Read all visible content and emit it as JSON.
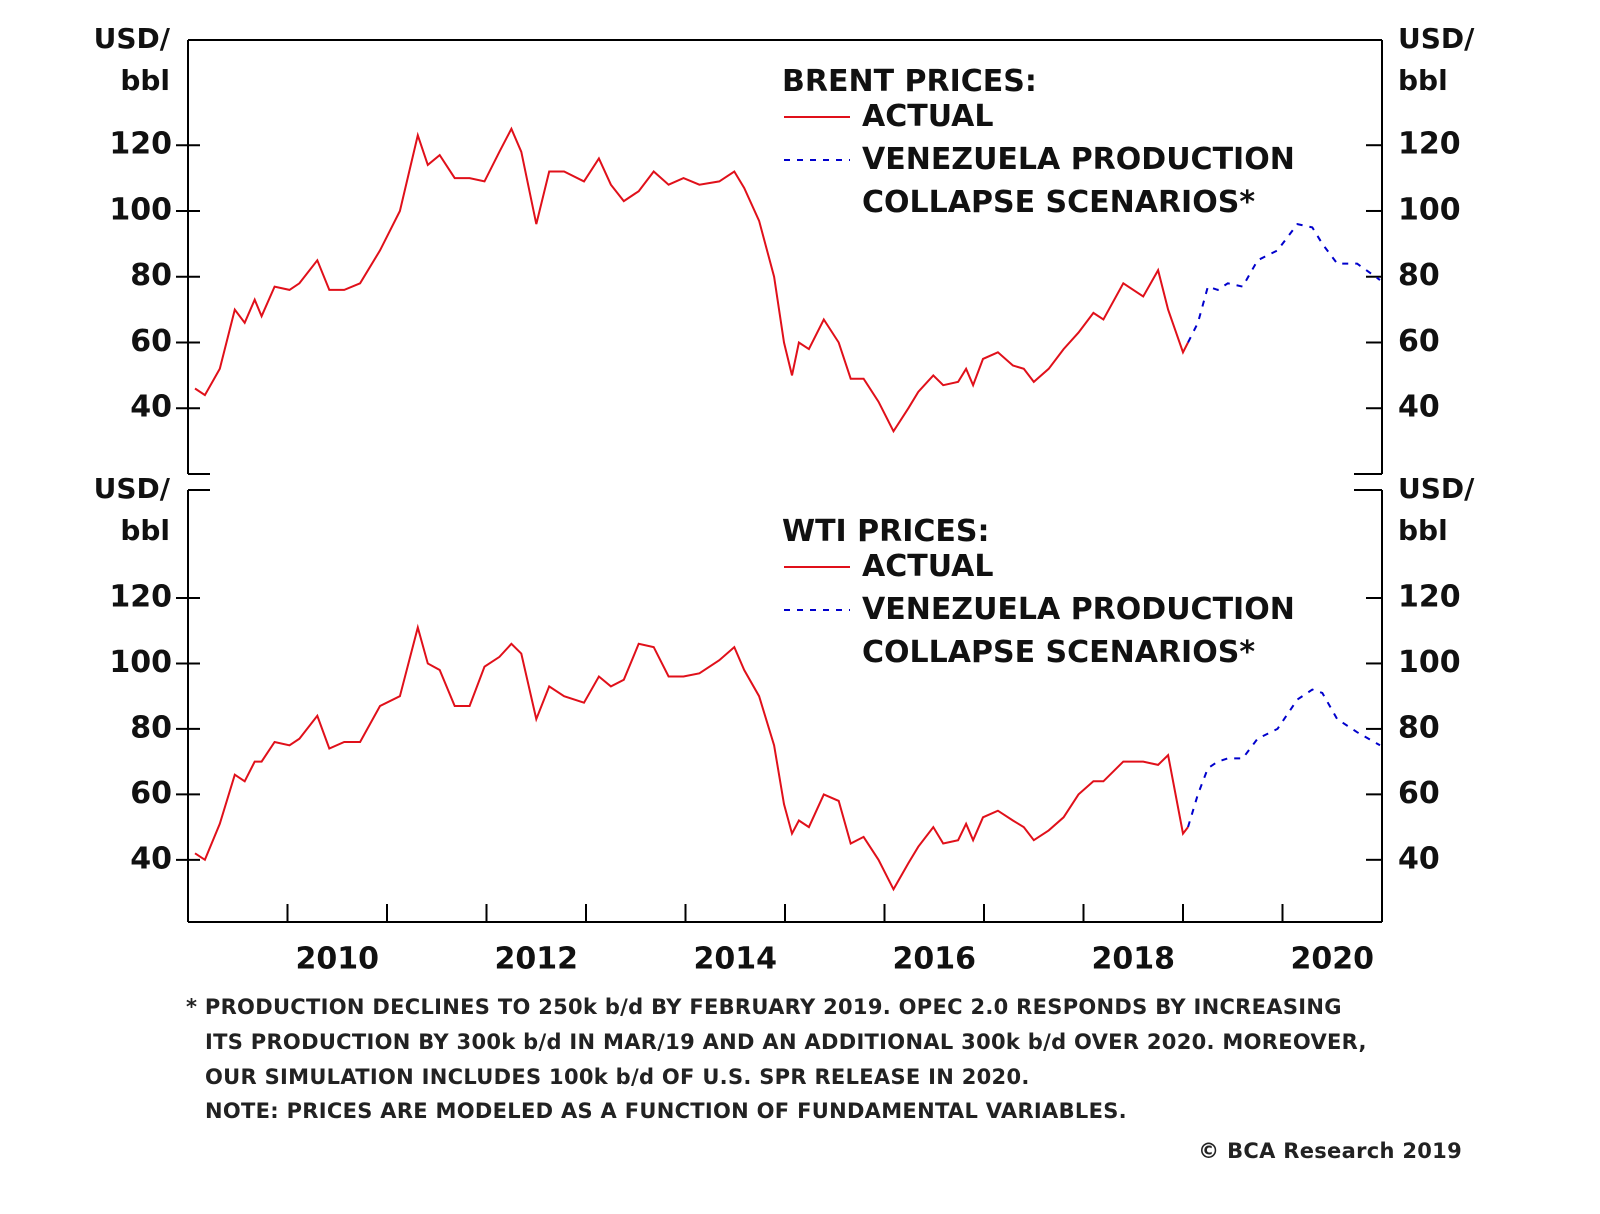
{
  "chart_data": [
    {
      "type": "line",
      "title": "BRENT PRICES:",
      "y_label": [
        "USD/",
        "bbl"
      ],
      "xlim": [
        2009,
        2021
      ],
      "ylim": [
        20,
        152
      ],
      "yticks": [
        40,
        60,
        80,
        100,
        120
      ],
      "series": [
        {
          "name": "ACTUAL",
          "color": "#e0101a",
          "style": "solid",
          "x": [
            2009.07,
            2009.17,
            2009.32,
            2009.47,
            2009.57,
            2009.67,
            2009.74,
            2009.87,
            2010.02,
            2010.12,
            2010.3,
            2010.42,
            2010.57,
            2010.73,
            2010.93,
            2011.13,
            2011.31,
            2011.41,
            2011.53,
            2011.68,
            2011.83,
            2011.98,
            2012.13,
            2012.25,
            2012.35,
            2012.5,
            2012.63,
            2012.78,
            2012.98,
            2013.13,
            2013.25,
            2013.38,
            2013.53,
            2013.68,
            2013.83,
            2013.98,
            2014.14,
            2014.34,
            2014.49,
            2014.59,
            2014.74,
            2014.89,
            2014.99,
            2015.07,
            2015.14,
            2015.24,
            2015.39,
            2015.54,
            2015.66,
            2015.79,
            2015.94,
            2016.09,
            2016.24,
            2016.34,
            2016.49,
            2016.59,
            2016.74,
            2016.82,
            2016.89,
            2016.99,
            2017.14,
            2017.29,
            2017.4,
            2017.5,
            2017.65,
            2017.8,
            2017.95,
            2018.1,
            2018.2,
            2018.4,
            2018.6,
            2018.75,
            2018.85,
            2019.0,
            2019.05
          ],
          "values": [
            46,
            44,
            52,
            70,
            66,
            73,
            68,
            77,
            76,
            78,
            85,
            76,
            76,
            78,
            88,
            100,
            123,
            114,
            117,
            110,
            110,
            109,
            118,
            125,
            118,
            96,
            112,
            112,
            109,
            116,
            108,
            103,
            106,
            112,
            108,
            110,
            108,
            109,
            112,
            107,
            97,
            80,
            60,
            50,
            60,
            58,
            67,
            60,
            49,
            49,
            42,
            33,
            40,
            45,
            50,
            47,
            48,
            52,
            47,
            55,
            57,
            53,
            52,
            48,
            52,
            58,
            63,
            69,
            67,
            78,
            74,
            82,
            70,
            57,
            60
          ]
        },
        {
          "name": "VENEZUELA PRODUCTION COLLAPSE SCENARIOS*",
          "color": "#0000cc",
          "style": "dashed",
          "x": [
            2019.05,
            2019.15,
            2019.25,
            2019.35,
            2019.45,
            2019.6,
            2019.75,
            2019.95,
            2020.15,
            2020.3,
            2020.4,
            2020.55,
            2020.75,
            2020.98
          ],
          "values": [
            60,
            66,
            77,
            76,
            78,
            77,
            85,
            88,
            96,
            95,
            90,
            84,
            84,
            79
          ]
        }
      ]
    },
    {
      "type": "line",
      "title": "WTI PRICES:",
      "y_label": [
        "USD/",
        "bbl"
      ],
      "xlim": [
        2009,
        2021
      ],
      "xticks": [
        2010,
        2011,
        2012,
        2013,
        2014,
        2015,
        2016,
        2017,
        2018,
        2019,
        2020
      ],
      "xlabels": [
        2010,
        2012,
        2014,
        2016,
        2018,
        2020
      ],
      "ylim": [
        21,
        153
      ],
      "yticks": [
        40,
        60,
        80,
        100,
        120
      ],
      "series": [
        {
          "name": "ACTUAL",
          "color": "#e0101a",
          "style": "solid",
          "x": [
            2009.07,
            2009.17,
            2009.32,
            2009.47,
            2009.57,
            2009.67,
            2009.74,
            2009.87,
            2010.02,
            2010.12,
            2010.3,
            2010.42,
            2010.57,
            2010.73,
            2010.93,
            2011.13,
            2011.31,
            2011.41,
            2011.53,
            2011.68,
            2011.83,
            2011.98,
            2012.13,
            2012.25,
            2012.35,
            2012.5,
            2012.63,
            2012.78,
            2012.98,
            2013.13,
            2013.25,
            2013.38,
            2013.53,
            2013.68,
            2013.83,
            2013.98,
            2014.14,
            2014.34,
            2014.49,
            2014.59,
            2014.74,
            2014.89,
            2014.99,
            2015.07,
            2015.14,
            2015.24,
            2015.39,
            2015.54,
            2015.66,
            2015.79,
            2015.94,
            2016.09,
            2016.24,
            2016.34,
            2016.49,
            2016.59,
            2016.74,
            2016.82,
            2016.89,
            2016.99,
            2017.14,
            2017.29,
            2017.4,
            2017.5,
            2017.65,
            2017.8,
            2017.95,
            2018.1,
            2018.2,
            2018.4,
            2018.6,
            2018.75,
            2018.85,
            2019.0,
            2019.05
          ],
          "values": [
            42,
            40,
            51,
            66,
            64,
            70,
            70,
            76,
            75,
            77,
            84,
            74,
            76,
            76,
            87,
            90,
            111,
            100,
            98,
            87,
            87,
            99,
            102,
            106,
            103,
            83,
            93,
            90,
            88,
            96,
            93,
            95,
            106,
            105,
            96,
            96,
            97,
            101,
            105,
            98,
            90,
            75,
            57,
            48,
            52,
            50,
            60,
            58,
            45,
            47,
            40,
            31,
            39,
            44,
            50,
            45,
            46,
            51,
            46,
            53,
            55,
            52,
            50,
            46,
            49,
            53,
            60,
            64,
            64,
            70,
            70,
            69,
            72,
            48,
            50
          ]
        },
        {
          "name": "VENEZUELA PRODUCTION COLLAPSE SCENARIOS*",
          "color": "#0000cc",
          "style": "dashed",
          "x": [
            2019.05,
            2019.15,
            2019.25,
            2019.35,
            2019.45,
            2019.6,
            2019.75,
            2019.95,
            2020.15,
            2020.3,
            2020.4,
            2020.55,
            2020.75,
            2020.98
          ],
          "values": [
            50,
            60,
            68,
            70,
            71,
            71,
            77,
            80,
            89,
            92,
            91,
            83,
            79,
            75
          ]
        }
      ]
    }
  ],
  "footnote": [
    "* PRODUCTION DECLINES TO 250k b/d BY FEBRUARY 2019. OPEC 2.0 RESPONDS BY INCREASING",
    "ITS PRODUCTION BY 300k b/d IN MAR/19 AND AN ADDITIONAL 300k b/d OVER 2020. MOREOVER,",
    "OUR SIMULATION INCLUDES 100k b/d OF U.S. SPR RELEASE IN 2020.",
    "NOTE: PRICES ARE MODELED AS A FUNCTION OF FUNDAMENTAL VARIABLES."
  ],
  "source": "© BCA Research 2019"
}
